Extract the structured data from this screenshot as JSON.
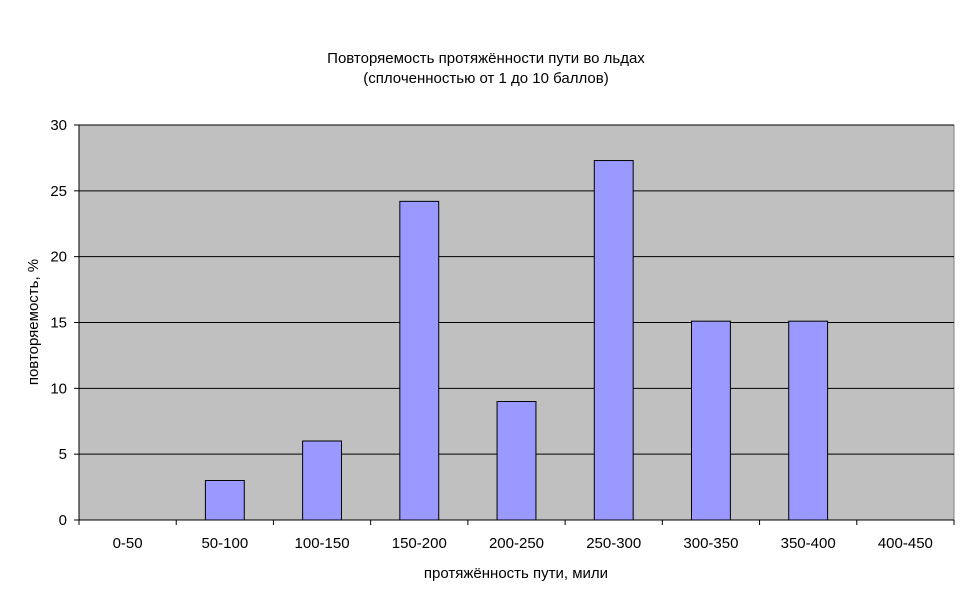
{
  "chart_data": {
    "type": "bar",
    "title": [
      "Повторяемость протяжённости пути во льдах",
      "(сплоченностью от 1 до 10 баллов)"
    ],
    "xlabel": "протяжённость пути, мили",
    "ylabel": "повторяемость, %",
    "categories": [
      "0-50",
      "50-100",
      "100-150",
      "150-200",
      "200-250",
      "250-300",
      "300-350",
      "350-400",
      "400-450"
    ],
    "values": [
      0,
      3,
      6,
      24.2,
      9,
      27.3,
      15.1,
      15.1,
      0
    ],
    "ylim": [
      0,
      30
    ],
    "yticks": [
      0,
      5,
      10,
      15,
      20,
      25,
      30
    ],
    "grid": true,
    "legend": "none",
    "colors": {
      "plot_background": "#c0c0c0",
      "bar_fill": "#9999ff",
      "bar_stroke": "#000000",
      "gridline": "#000000"
    }
  }
}
